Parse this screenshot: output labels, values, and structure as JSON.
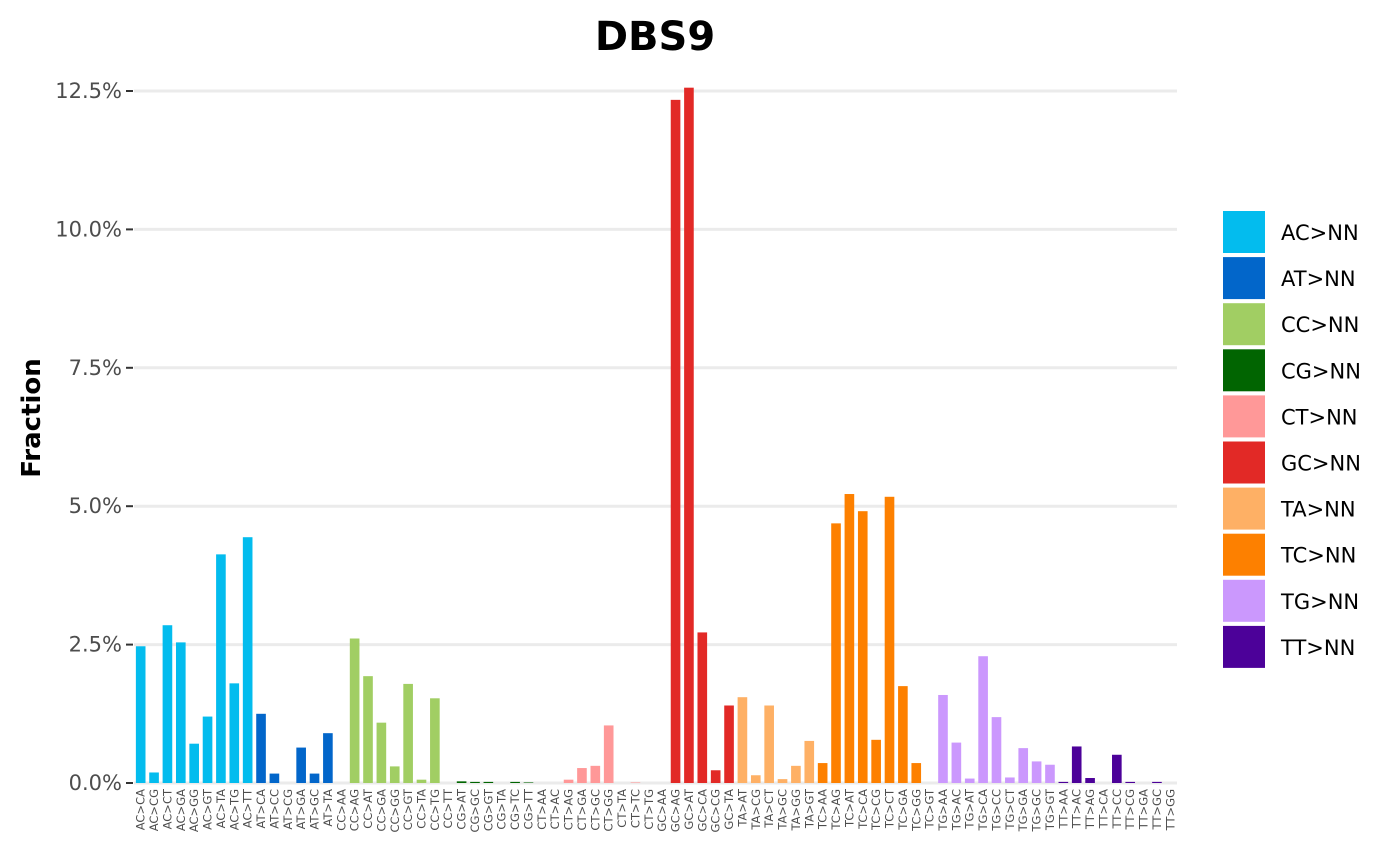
{
  "chart_data": {
    "type": "bar",
    "title": "DBS9",
    "xlabel": "",
    "ylabel": "Fraction",
    "ylim": [
      0,
      0.125
    ],
    "yticks": [
      0,
      0.025,
      0.05,
      0.075,
      0.1,
      0.125
    ],
    "ytick_labels": [
      "0.0%",
      "2.5%",
      "5.0%",
      "7.5%",
      "10.0%",
      "12.5%"
    ],
    "grid": true,
    "legend_position": "right",
    "groups": [
      {
        "name": "AC>NN",
        "color": "#03BCEE"
      },
      {
        "name": "AT>NN",
        "color": "#0266CA"
      },
      {
        "name": "CC>NN",
        "color": "#A1CE63"
      },
      {
        "name": "CG>NN",
        "color": "#016501"
      },
      {
        "name": "CT>NN",
        "color": "#FF9898"
      },
      {
        "name": "GC>NN",
        "color": "#E22926"
      },
      {
        "name": "TA>NN",
        "color": "#FEB065"
      },
      {
        "name": "TC>NN",
        "color": "#FD8000"
      },
      {
        "name": "TG>NN",
        "color": "#CB98FD"
      },
      {
        "name": "TT>NN",
        "color": "#4C0199"
      }
    ],
    "categories": [
      "AC>CA",
      "AC>CG",
      "AC>CT",
      "AC>GA",
      "AC>GG",
      "AC>GT",
      "AC>TA",
      "AC>TG",
      "AC>TT",
      "AT>CA",
      "AT>CC",
      "AT>CG",
      "AT>GA",
      "AT>GC",
      "AT>TA",
      "CC>AA",
      "CC>AG",
      "CC>AT",
      "CC>GA",
      "CC>GG",
      "CC>GT",
      "CC>TA",
      "CC>TG",
      "CC>TT",
      "CG>AT",
      "CG>GC",
      "CG>GT",
      "CG>TA",
      "CG>TC",
      "CG>TT",
      "CT>AA",
      "CT>AC",
      "CT>AG",
      "CT>GA",
      "CT>GC",
      "CT>GG",
      "CT>TA",
      "CT>TC",
      "CT>TG",
      "GC>AA",
      "GC>AG",
      "GC>AT",
      "GC>CA",
      "GC>CG",
      "GC>TA",
      "TA>AT",
      "TA>CG",
      "TA>CT",
      "TA>GC",
      "TA>GG",
      "TA>GT",
      "TC>AA",
      "TC>AG",
      "TC>AT",
      "TC>CA",
      "TC>CG",
      "TC>CT",
      "TC>GA",
      "TC>GG",
      "TC>GT",
      "TG>AA",
      "TG>AC",
      "TG>AT",
      "TG>CA",
      "TG>CC",
      "TG>CT",
      "TG>GA",
      "TG>GC",
      "TG>GT",
      "TT>AA",
      "TT>AC",
      "TT>AG",
      "TT>CA",
      "TT>CC",
      "TT>CG",
      "TT>GA",
      "TT>GC",
      "TT>GG"
    ],
    "group_index": [
      0,
      0,
      0,
      0,
      0,
      0,
      0,
      0,
      0,
      1,
      1,
      1,
      1,
      1,
      1,
      2,
      2,
      2,
      2,
      2,
      2,
      2,
      2,
      2,
      3,
      3,
      3,
      3,
      3,
      3,
      4,
      4,
      4,
      4,
      4,
      4,
      4,
      4,
      4,
      5,
      5,
      5,
      5,
      5,
      5,
      6,
      6,
      6,
      6,
      6,
      6,
      7,
      7,
      7,
      7,
      7,
      7,
      7,
      7,
      7,
      8,
      8,
      8,
      8,
      8,
      8,
      8,
      8,
      8,
      9,
      9,
      9,
      9,
      9,
      9,
      9,
      9,
      9
    ],
    "values": [
      0.0247,
      0.0019,
      0.0285,
      0.0254,
      0.0071,
      0.012,
      0.0413,
      0.018,
      0.0444,
      0.0125,
      0.0017,
      0.0,
      0.0064,
      0.0017,
      0.009,
      0.0,
      0.0261,
      0.0193,
      0.0109,
      0.003,
      0.0179,
      0.0006,
      0.0153,
      0.0,
      0.0003,
      0.0002,
      0.0002,
      0.0,
      0.0002,
      0.0001,
      0.0,
      0.0,
      0.0006,
      0.0027,
      0.0031,
      0.0104,
      0.0,
      0.0001,
      0.0,
      0.0,
      0.1234,
      0.1256,
      0.0272,
      0.0023,
      0.014,
      0.0155,
      0.0014,
      0.014,
      0.0007,
      0.0031,
      0.0076,
      0.0036,
      0.0469,
      0.0522,
      0.0491,
      0.0078,
      0.0517,
      0.0175,
      0.0036,
      0.0,
      0.0159,
      0.0073,
      0.0008,
      0.0229,
      0.0119,
      0.001,
      0.0063,
      0.0039,
      0.0033,
      0.0002,
      0.0066,
      0.0009,
      0.0,
      0.0051,
      0.0002,
      0.0,
      0.0002,
      0.0
    ]
  }
}
